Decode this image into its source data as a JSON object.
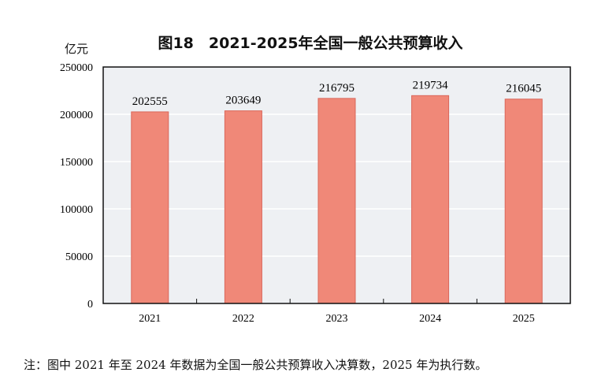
{
  "chart_data": {
    "type": "bar",
    "title": "图18　2021-2025年全国一般公共预算收入",
    "ylabel": "亿元",
    "xlabel": "",
    "categories": [
      "2021",
      "2022",
      "2023",
      "2024",
      "2025"
    ],
    "values": [
      202555,
      203649,
      216795,
      219734,
      216045
    ],
    "ylim": [
      0,
      250000
    ],
    "yticks": [
      0,
      50000,
      100000,
      150000,
      200000,
      250000
    ],
    "grid": true,
    "colors": {
      "bar": "#f08878",
      "bar_edge": "#d9675a",
      "plot_bg": "#eef0f3",
      "grid": "#ffffff"
    }
  },
  "note": "注：图中 2021 年至 2024 年数据为全国一般公共预算收入决算数，2025 年为执行数。"
}
